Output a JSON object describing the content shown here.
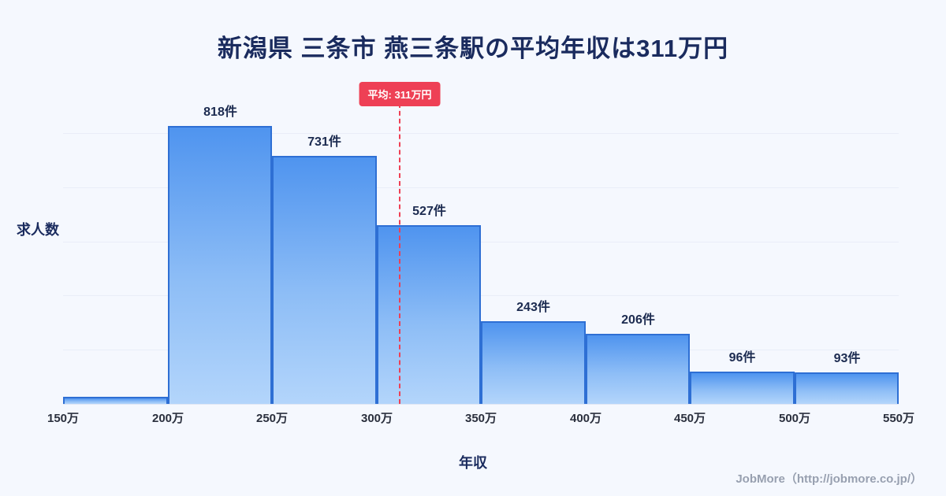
{
  "title": "新潟県 三条市 燕三条駅の平均年収は311万円",
  "ylabel": "求人数",
  "xlabel": "年収",
  "footer": "JobMore（http://jobmore.co.jp/）",
  "average_label": "平均: 311万円",
  "chart_data": {
    "type": "bar",
    "title": "新潟県 三条市 燕三条駅の平均年収は311万円",
    "xlabel": "年収",
    "ylabel": "求人数",
    "x_ticks": [
      "150万",
      "200万",
      "250万",
      "300万",
      "350万",
      "400万",
      "450万",
      "500万",
      "550万"
    ],
    "bin_edges": [
      150,
      200,
      250,
      300,
      350,
      400,
      450,
      500,
      550
    ],
    "values": [
      20,
      818,
      731,
      527,
      243,
      206,
      96,
      93
    ],
    "bar_labels": [
      "",
      "818件",
      "731件",
      "527件",
      "243件",
      "206件",
      "96件",
      "93件"
    ],
    "ylim": [
      0,
      900
    ],
    "grid": "faint-horizontal",
    "legend": "none",
    "average": {
      "value": 311,
      "label": "平均: 311万円"
    },
    "colors": {
      "background": "#f5f8fe",
      "bar_fill_top": "#4f94ef",
      "bar_fill_bottom": "#b3d5fb",
      "bar_border": "#2e6fd4",
      "average_line": "#ee4055",
      "title_text": "#1a2b5e",
      "footer_text": "#98a0b0"
    }
  }
}
